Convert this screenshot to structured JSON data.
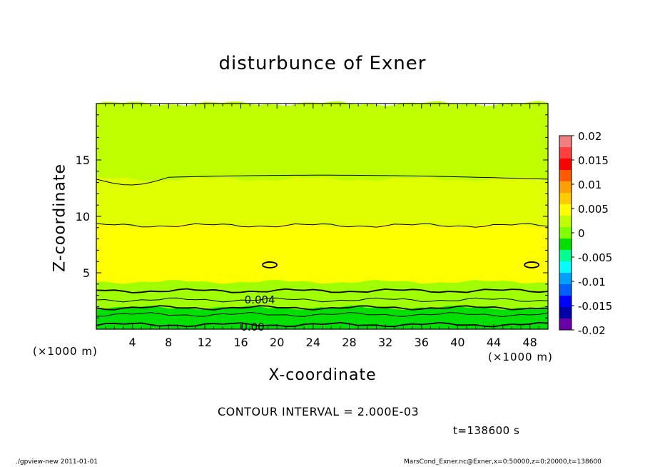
{
  "chart_data": {
    "type": "heatmap",
    "title": "disturbunce of Exner",
    "xlabel": "X-coordinate",
    "ylabel": "Z-coordinate",
    "x_unit_label": "(×1000 m)",
    "xlim": [
      0,
      50
    ],
    "ylim": [
      0,
      20
    ],
    "x_ticks": [
      4,
      8,
      12,
      16,
      20,
      24,
      28,
      32,
      36,
      40,
      44,
      48
    ],
    "y_ticks": [
      5,
      10,
      15
    ],
    "contour_interval_label": "CONTOUR INTERVAL = 2.000E-03",
    "contour_labels": [
      {
        "text": "0.004",
        "x": 18.1,
        "z": 2.6
      },
      {
        "text": "0.00",
        "x": 17.3,
        "z": 0.2
      }
    ],
    "colorbar": {
      "tick_labels": [
        "0.02",
        "0.015",
        "0.01",
        "0.005",
        "0",
        "-0.005",
        "-0.01",
        "-0.015",
        "-0.02"
      ],
      "levels": [
        0.02,
        0.0175,
        0.015,
        0.0125,
        0.01,
        0.0075,
        0.005,
        0.0025,
        0,
        -0.0025,
        -0.005,
        -0.0075,
        -0.01,
        -0.0125,
        -0.015,
        -0.0175,
        -0.02
      ],
      "colors": [
        "#f08080",
        "#ff4040",
        "#ff0000",
        "#ff5a00",
        "#ffa000",
        "#ffcc00",
        "#ffff00",
        "#c0ff00",
        "#80ff00",
        "#00e000",
        "#00ff90",
        "#00ffff",
        "#00a0ff",
        "#0060ff",
        "#0000ff",
        "#0000aa",
        "#6a00aa"
      ]
    },
    "bands": [
      {
        "value_range": [
          0.002,
          0.004
        ],
        "color": "#a0ff00",
        "z_top": 4.2
      },
      {
        "value_range": [
          0.004,
          0.006
        ],
        "color": "#ffff00",
        "z_top": 9.2
      },
      {
        "value_range": [
          0.006,
          0.008
        ],
        "color": "#e0ff00",
        "z_top": 13.3
      },
      {
        "value_range": [
          0.008,
          0.01
        ],
        "color": "#c0ff00",
        "z_top": 20
      }
    ],
    "bottom_colors": [
      "#00e000",
      "#40ff00",
      "#80ff00"
    ],
    "contour_lines_z": [
      13.3,
      9.2,
      3.4,
      2.6,
      1.9,
      1.3,
      0.4
    ],
    "closed_contours": [
      {
        "x": 19.2,
        "z": 5.7
      },
      {
        "x": 48.2,
        "z": 5.7
      }
    ]
  },
  "labels": {
    "time": "t=138600 s",
    "footer_left": "./gpview-new   2011-01-01",
    "footer_right": "MarsCond_Exner.nc@Exner,x=0:50000,z=0:20000,t=138600"
  }
}
